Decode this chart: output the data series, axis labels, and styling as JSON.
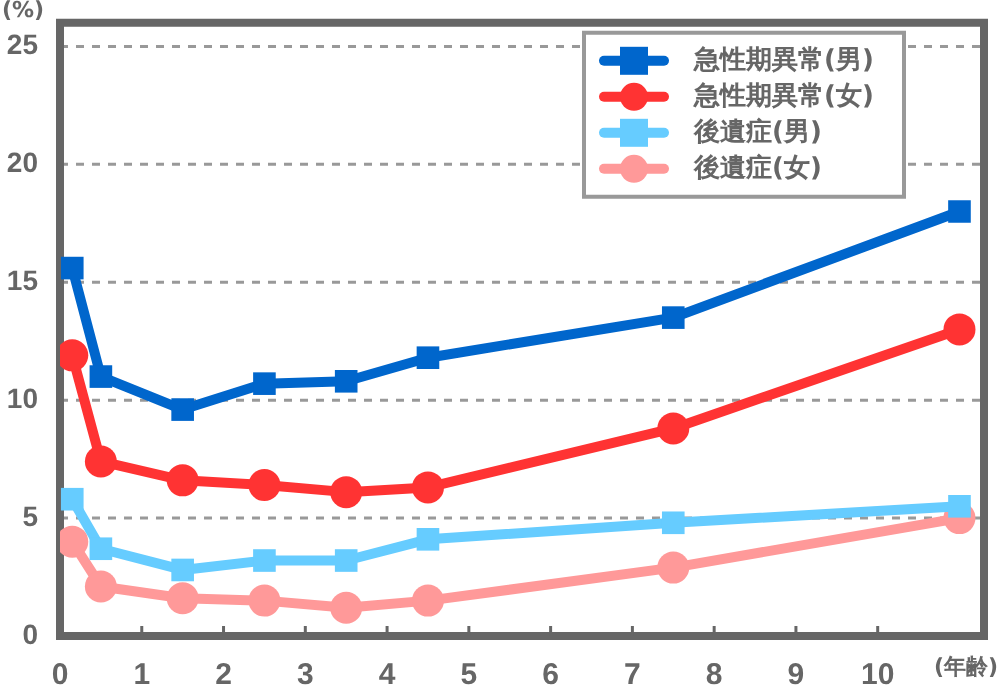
{
  "chart_data": {
    "type": "line",
    "xlabel": "(年齢)",
    "ylabel": "(%)",
    "xlim": [
      0,
      11.3
    ],
    "xticks": [
      0,
      1,
      2,
      3,
      4,
      5,
      6,
      7,
      8,
      9,
      10
    ],
    "ylim": [
      0,
      26
    ],
    "yticks": [
      0,
      5,
      10,
      15,
      20,
      25
    ],
    "grid": "y",
    "legend": "top right",
    "line_style": "solid",
    "x": [
      0.15,
      0.5,
      1.5,
      2.5,
      3.5,
      4.5,
      7.5,
      11
    ],
    "series": [
      {
        "name": "急性期異常(男)",
        "color": "#0066cc",
        "marker": "square",
        "values": [
          15.6,
          11.0,
          9.6,
          10.7,
          10.8,
          11.8,
          13.5,
          18.0
        ]
      },
      {
        "name": "急性期異常(女)",
        "color": "#ff3333",
        "marker": "circle",
        "values": [
          11.9,
          7.4,
          6.6,
          6.4,
          6.1,
          6.3,
          8.8,
          13.0
        ]
      },
      {
        "name": "後遺症(男)",
        "color": "#66ccff",
        "marker": "square",
        "values": [
          5.8,
          3.7,
          2.8,
          3.2,
          3.2,
          4.1,
          4.8,
          5.5
        ]
      },
      {
        "name": "後遺症(女)",
        "color": "#ff9999",
        "marker": "circle",
        "values": [
          4.0,
          2.1,
          1.6,
          1.5,
          1.2,
          1.5,
          2.9,
          5.0
        ]
      }
    ]
  }
}
